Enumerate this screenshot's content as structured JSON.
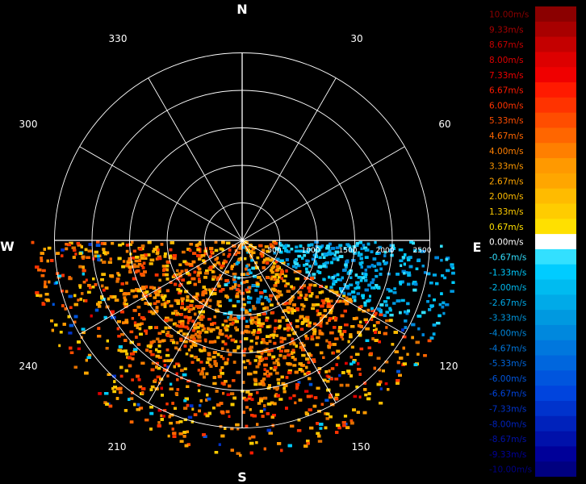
{
  "radar": {
    "cardinals": {
      "north": "N",
      "east": "E",
      "south": "S",
      "west": "W"
    },
    "bearings": [
      "30",
      "60",
      "120",
      "150",
      "210",
      "240",
      "300",
      "330"
    ],
    "range_rings": [
      "500",
      "1000",
      "1500",
      "2000",
      "2500"
    ],
    "grid_color": "#ffffff",
    "background_color": "#000000"
  },
  "legend": {
    "entries": [
      {
        "label": "10.00m/s",
        "color": "#8b0000"
      },
      {
        "label": "9.33m/s",
        "color": "#a80000"
      },
      {
        "label": "8.67m/s",
        "color": "#c40000"
      },
      {
        "label": "8.00m/s",
        "color": "#dd0000"
      },
      {
        "label": "7.33m/s",
        "color": "#f00000"
      },
      {
        "label": "6.67m/s",
        "color": "#ff1a00"
      },
      {
        "label": "6.00m/s",
        "color": "#ff3300"
      },
      {
        "label": "5.33m/s",
        "color": "#ff4d00"
      },
      {
        "label": "4.67m/s",
        "color": "#ff6600"
      },
      {
        "label": "4.00m/s",
        "color": "#ff7f00"
      },
      {
        "label": "3.33m/s",
        "color": "#ff9900"
      },
      {
        "label": "2.67m/s",
        "color": "#ffa600"
      },
      {
        "label": "2.00m/s",
        "color": "#ffbb00"
      },
      {
        "label": "1.33m/s",
        "color": "#ffcc00"
      },
      {
        "label": "0.67m/s",
        "color": "#ffe000"
      },
      {
        "label": "0.00m/s",
        "color": "#ffffff"
      },
      {
        "label": "-0.67m/s",
        "color": "#33e0ff"
      },
      {
        "label": "-1.33m/s",
        "color": "#00ccff"
      },
      {
        "label": "-2.00m/s",
        "color": "#00bbf0"
      },
      {
        "label": "-2.67m/s",
        "color": "#00aae8"
      },
      {
        "label": "-3.33m/s",
        "color": "#0099e0"
      },
      {
        "label": "-4.00m/s",
        "color": "#0088dd"
      },
      {
        "label": "-4.67m/s",
        "color": "#0077dd"
      },
      {
        "label": "-5.33m/s",
        "color": "#0066dd"
      },
      {
        "label": "-6.00m/s",
        "color": "#0055dd"
      },
      {
        "label": "-6.67m/s",
        "color": "#0044dd"
      },
      {
        "label": "-7.33m/s",
        "color": "#0033cc"
      },
      {
        "label": "-8.00m/s",
        "color": "#0022bb"
      },
      {
        "label": "-8.67m/s",
        "color": "#0011aa"
      },
      {
        "label": "-9.33m/s",
        "color": "#000099"
      },
      {
        "label": "-10.00m/s",
        "color": "#000080"
      }
    ]
  }
}
